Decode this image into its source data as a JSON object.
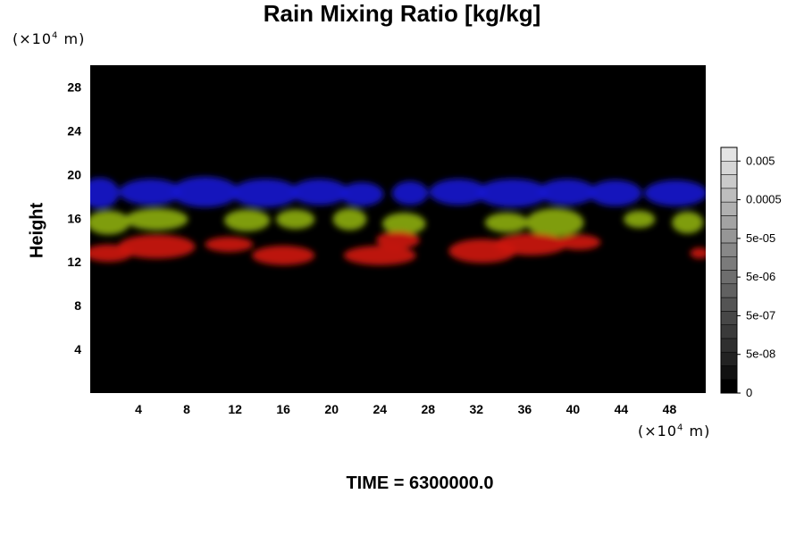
{
  "chart_data": {
    "type": "heatmap",
    "title": "Rain Mixing Ratio [kg/kg]",
    "ylabel": "Height",
    "y_unit": "(×10",
    "x_unit": "(×10",
    "unit_exponent": "4",
    "unit_suffix": " m)",
    "xlim": [
      0,
      51
    ],
    "ylim": [
      0,
      30
    ],
    "x_ticks": [
      "4",
      "8",
      "12",
      "16",
      "20",
      "24",
      "28",
      "32",
      "36",
      "40",
      "44",
      "48"
    ],
    "y_ticks": [
      "4",
      "8",
      "12",
      "16",
      "20",
      "24",
      "28"
    ],
    "background_color": "#000000",
    "colorbar": {
      "labels": [
        "0",
        "5e-08",
        "5e-07",
        "5e-06",
        "5e-05",
        "0.0005",
        "0.005"
      ],
      "colors": [
        "#000000",
        "#111111",
        "#222222",
        "#2f2f2f",
        "#3a3a3a",
        "#474747",
        "#545454",
        "#616161",
        "#6e6e6e",
        "#7b7b7b",
        "#888888",
        "#969696",
        "#a3a3a3",
        "#b0b0b0",
        "#bdbdbd",
        "#cacaca",
        "#d6d6d6",
        "#e4e4e4"
      ]
    },
    "layers": [
      {
        "color": "#1a1acc",
        "y_range": [
          17,
          20
        ],
        "blobs": [
          {
            "x": 0.8,
            "y": 18.3,
            "rx": 1.6,
            "ry": 1.4
          },
          {
            "x": 5,
            "y": 18.4,
            "rx": 2.6,
            "ry": 1.2
          },
          {
            "x": 9.5,
            "y": 18.4,
            "rx": 2.8,
            "ry": 1.4
          },
          {
            "x": 14.5,
            "y": 18.3,
            "rx": 2.8,
            "ry": 1.3
          },
          {
            "x": 19,
            "y": 18.4,
            "rx": 2.4,
            "ry": 1.2
          },
          {
            "x": 22.5,
            "y": 18.2,
            "rx": 1.8,
            "ry": 1.1
          },
          {
            "x": 26.5,
            "y": 18.3,
            "rx": 1.5,
            "ry": 1.1
          },
          {
            "x": 30.5,
            "y": 18.4,
            "rx": 2.4,
            "ry": 1.2
          },
          {
            "x": 35,
            "y": 18.3,
            "rx": 3,
            "ry": 1.3
          },
          {
            "x": 39.5,
            "y": 18.4,
            "rx": 2.4,
            "ry": 1.2
          },
          {
            "x": 43.5,
            "y": 18.3,
            "rx": 2.2,
            "ry": 1.2
          },
          {
            "x": 48.5,
            "y": 18.3,
            "rx": 2.6,
            "ry": 1.2
          }
        ]
      },
      {
        "color": "#8aaa10",
        "y_range": [
          14,
          17
        ],
        "blobs": [
          {
            "x": 1.5,
            "y": 15.6,
            "rx": 1.8,
            "ry": 1.1
          },
          {
            "x": 5.5,
            "y": 15.9,
            "rx": 2.6,
            "ry": 1.0
          },
          {
            "x": 13,
            "y": 15.8,
            "rx": 1.9,
            "ry": 1.0
          },
          {
            "x": 17,
            "y": 15.9,
            "rx": 1.6,
            "ry": 0.9
          },
          {
            "x": 21.5,
            "y": 15.9,
            "rx": 1.4,
            "ry": 1.0
          },
          {
            "x": 26,
            "y": 15.5,
            "rx": 1.8,
            "ry": 1.0
          },
          {
            "x": 34.5,
            "y": 15.6,
            "rx": 1.8,
            "ry": 0.9
          },
          {
            "x": 38.5,
            "y": 15.6,
            "rx": 2.4,
            "ry": 1.3
          },
          {
            "x": 45.5,
            "y": 15.9,
            "rx": 1.3,
            "ry": 0.8
          },
          {
            "x": 49.5,
            "y": 15.6,
            "rx": 1.3,
            "ry": 1.0
          }
        ]
      },
      {
        "color": "#cc1a10",
        "y_range": [
          12,
          15
        ],
        "blobs": [
          {
            "x": 1.5,
            "y": 12.8,
            "rx": 2.0,
            "ry": 0.8
          },
          {
            "x": 5.5,
            "y": 13.4,
            "rx": 3.2,
            "ry": 1.1
          },
          {
            "x": 11.5,
            "y": 13.6,
            "rx": 2.0,
            "ry": 0.7
          },
          {
            "x": 16,
            "y": 12.6,
            "rx": 2.6,
            "ry": 0.9
          },
          {
            "x": 24,
            "y": 12.6,
            "rx": 3.0,
            "ry": 0.9
          },
          {
            "x": 25.5,
            "y": 14.0,
            "rx": 1.8,
            "ry": 0.8
          },
          {
            "x": 32.5,
            "y": 13.0,
            "rx": 2.8,
            "ry": 1.1
          },
          {
            "x": 36.5,
            "y": 13.6,
            "rx": 3.0,
            "ry": 1.0
          },
          {
            "x": 40.5,
            "y": 13.8,
            "rx": 1.8,
            "ry": 0.7
          },
          {
            "x": 50.5,
            "y": 12.8,
            "rx": 0.8,
            "ry": 0.5
          }
        ]
      }
    ]
  },
  "footer": {
    "time_label": "TIME = 6300000.0"
  }
}
